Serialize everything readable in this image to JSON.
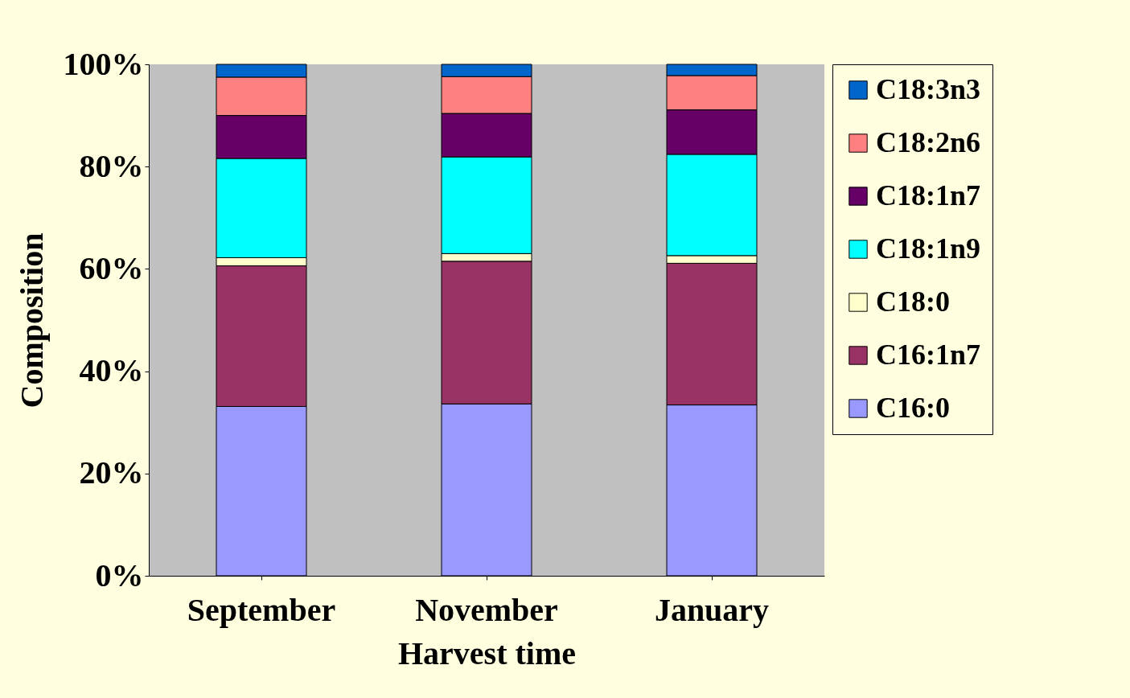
{
  "chart_data": {
    "type": "bar",
    "stacked": true,
    "xlabel": "Harvest time",
    "ylabel": "Composition",
    "categories": [
      "September",
      "November",
      "January"
    ],
    "series": [
      {
        "name": "C16:0",
        "color": "#9999ff",
        "values": [
          33.1,
          33.6,
          33.4
        ]
      },
      {
        "name": "C16:1n7",
        "color": "#993366",
        "values": [
          27.5,
          27.9,
          27.7
        ]
      },
      {
        "name": "C18:0",
        "color": "#ffffcc",
        "values": [
          1.6,
          1.5,
          1.5
        ]
      },
      {
        "name": "C18:1n9",
        "color": "#00ffff",
        "values": [
          19.4,
          18.9,
          19.8
        ]
      },
      {
        "name": "C18:1n7",
        "color": "#660066",
        "values": [
          8.4,
          8.5,
          8.7
        ]
      },
      {
        "name": "C18:2n6",
        "color": "#ff8080",
        "values": [
          7.5,
          7.2,
          6.7
        ]
      },
      {
        "name": "C18:3n3",
        "color": "#0066cc",
        "values": [
          2.5,
          2.4,
          2.2
        ]
      }
    ],
    "ylim": [
      0,
      100
    ],
    "yticks": [
      {
        "value": 0,
        "label": "0%"
      },
      {
        "value": 20,
        "label": "20%"
      },
      {
        "value": 40,
        "label": "40%"
      },
      {
        "value": 60,
        "label": "60%"
      },
      {
        "value": 80,
        "label": "80%"
      },
      {
        "value": 100,
        "label": "100%"
      }
    ],
    "legend": "right",
    "grid": false
  }
}
